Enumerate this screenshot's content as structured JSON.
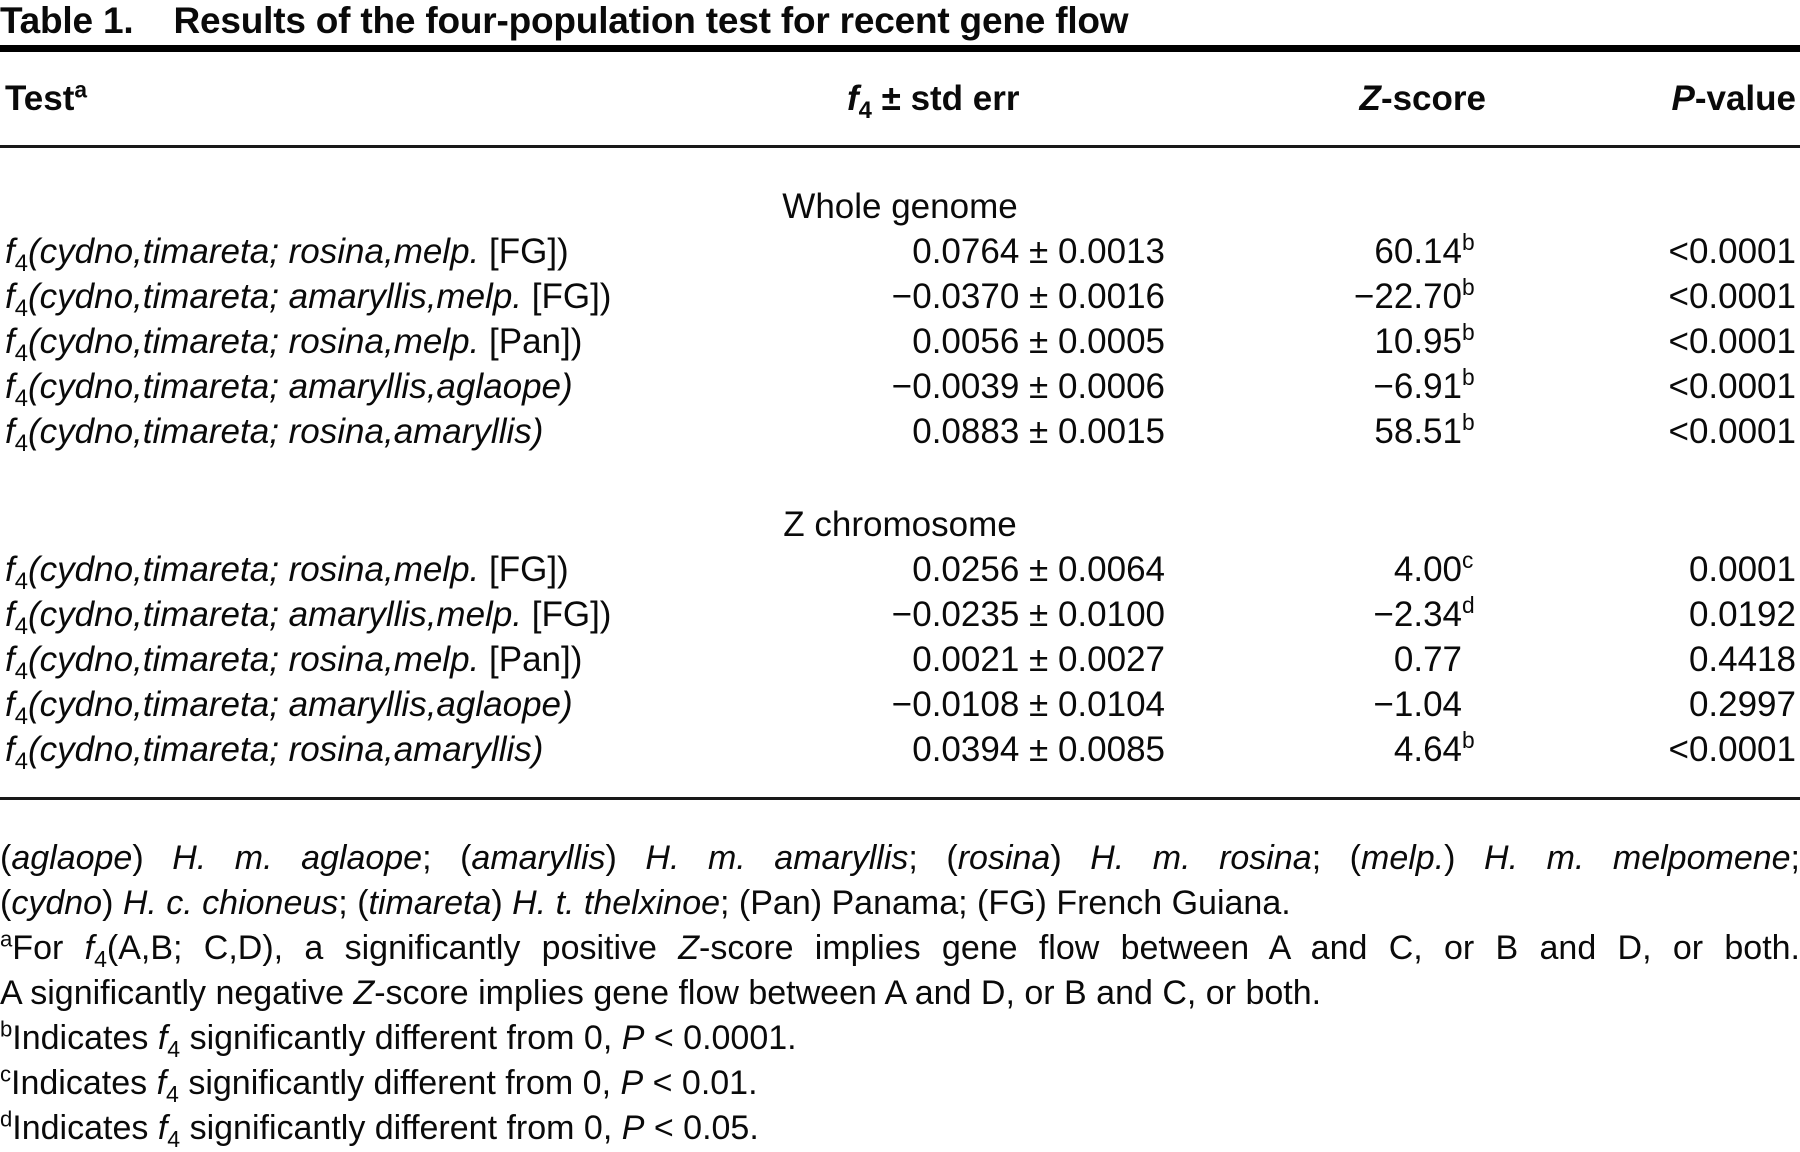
{
  "title": {
    "label": "Table 1.",
    "text": "Results of the four-population test for recent gene flow"
  },
  "columns": {
    "test": [
      {
        "t": "Test"
      },
      {
        "t": "a",
        "sup": 1
      }
    ],
    "f4": [
      {
        "t": "f",
        "i": 1
      },
      {
        "t": "4",
        "sub": 1
      },
      {
        "t": " ± std err"
      }
    ],
    "z": [
      {
        "t": "Z",
        "i": 1
      },
      {
        "t": "-score"
      }
    ],
    "p": [
      {
        "t": "P",
        "i": 1
      },
      {
        "t": "-value"
      }
    ]
  },
  "sections": [
    {
      "heading": "Whole genome",
      "rows": [
        {
          "test": [
            {
              "t": "f",
              "i": 1
            },
            {
              "t": "4",
              "sub": 1
            },
            {
              "t": "(cydno,timareta; rosina,melp.",
              "i": 1
            },
            {
              "t": " [FG])"
            }
          ],
          "f4": "0.0764 ± 0.0013",
          "z": "60.14",
          "z_sup": "b",
          "p": "<0.0001"
        },
        {
          "test": [
            {
              "t": "f",
              "i": 1
            },
            {
              "t": "4",
              "sub": 1
            },
            {
              "t": "(cydno,timareta; amaryllis,melp.",
              "i": 1
            },
            {
              "t": " [FG])"
            }
          ],
          "f4": "−0.0370 ± 0.0016",
          "z": "−22.70",
          "z_sup": "b",
          "p": "<0.0001"
        },
        {
          "test": [
            {
              "t": "f",
              "i": 1
            },
            {
              "t": "4",
              "sub": 1
            },
            {
              "t": "(cydno,timareta; rosina,melp.",
              "i": 1
            },
            {
              "t": " [Pan])"
            }
          ],
          "f4": "0.0056 ± 0.0005",
          "z": "10.95",
          "z_sup": "b",
          "p": "<0.0001"
        },
        {
          "test": [
            {
              "t": "f",
              "i": 1
            },
            {
              "t": "4",
              "sub": 1
            },
            {
              "t": "(cydno,timareta; amaryllis,aglaope)",
              "i": 1
            }
          ],
          "f4": "−0.0039 ± 0.0006",
          "z": "−6.91",
          "z_sup": "b",
          "p": "<0.0001"
        },
        {
          "test": [
            {
              "t": "f",
              "i": 1
            },
            {
              "t": "4",
              "sub": 1
            },
            {
              "t": "(cydno,timareta; rosina,amaryllis)",
              "i": 1
            }
          ],
          "f4": "0.0883 ± 0.0015",
          "z": "58.51",
          "z_sup": "b",
          "p": "<0.0001"
        }
      ]
    },
    {
      "heading": "Z chromosome",
      "rows": [
        {
          "test": [
            {
              "t": "f",
              "i": 1
            },
            {
              "t": "4",
              "sub": 1
            },
            {
              "t": "(cydno,timareta; rosina,melp.",
              "i": 1
            },
            {
              "t": " [FG])"
            }
          ],
          "f4": "0.0256 ± 0.0064",
          "z": "4.00",
          "z_sup": "c",
          "p": "0.0001"
        },
        {
          "test": [
            {
              "t": "f",
              "i": 1
            },
            {
              "t": "4",
              "sub": 1
            },
            {
              "t": "(cydno,timareta; amaryllis,melp.",
              "i": 1
            },
            {
              "t": " [FG])"
            }
          ],
          "f4": "−0.0235 ± 0.0100",
          "z": "−2.34",
          "z_sup": "d",
          "p": "0.0192"
        },
        {
          "test": [
            {
              "t": "f",
              "i": 1
            },
            {
              "t": "4",
              "sub": 1
            },
            {
              "t": "(cydno,timareta; rosina,melp.",
              "i": 1
            },
            {
              "t": " [Pan])"
            }
          ],
          "f4": "0.0021 ± 0.0027",
          "z": "0.77",
          "z_sup": "",
          "p": "0.4418"
        },
        {
          "test": [
            {
              "t": "f",
              "i": 1
            },
            {
              "t": "4",
              "sub": 1
            },
            {
              "t": "(cydno,timareta; amaryllis,aglaope)",
              "i": 1
            }
          ],
          "f4": "−0.0108 ± 0.0104",
          "z": "−1.04",
          "z_sup": "",
          "p": "0.2997"
        },
        {
          "test": [
            {
              "t": "f",
              "i": 1
            },
            {
              "t": "4",
              "sub": 1
            },
            {
              "t": "(cydno,timareta; rosina,amaryllis)",
              "i": 1
            }
          ],
          "f4": "0.0394 ± 0.0085",
          "z": "4.64",
          "z_sup": "b",
          "p": "<0.0001"
        }
      ]
    }
  ],
  "footnotes": {
    "species_key_line1": [
      {
        "t": "("
      },
      {
        "t": "aglaope",
        "i": 1
      },
      {
        "t": ") "
      },
      {
        "t": "H. m. aglaope",
        "i": 1
      },
      {
        "t": "; ("
      },
      {
        "t": "amaryllis",
        "i": 1
      },
      {
        "t": ") "
      },
      {
        "t": "H. m. amaryllis",
        "i": 1
      },
      {
        "t": "; ("
      },
      {
        "t": "rosina",
        "i": 1
      },
      {
        "t": ") "
      },
      {
        "t": "H. m. rosina",
        "i": 1
      },
      {
        "t": "; ("
      },
      {
        "t": "melp.",
        "i": 1
      },
      {
        "t": ") "
      },
      {
        "t": "H. m. melpomene",
        "i": 1
      },
      {
        "t": ";"
      }
    ],
    "species_key_line2": [
      {
        "t": "("
      },
      {
        "t": "cydno",
        "i": 1
      },
      {
        "t": ") "
      },
      {
        "t": "H. c. chioneus",
        "i": 1
      },
      {
        "t": "; ("
      },
      {
        "t": "timareta",
        "i": 1
      },
      {
        "t": ") "
      },
      {
        "t": "H. t. thelxinoe",
        "i": 1
      },
      {
        "t": "; (Pan) Panama; (FG) French Guiana."
      }
    ],
    "note_a_line1": [
      {
        "t": "a",
        "sup": 1
      },
      {
        "t": "For "
      },
      {
        "t": "f",
        "i": 1
      },
      {
        "t": "4",
        "sub": 1
      },
      {
        "t": "(A,B; C,D), a significantly positive "
      },
      {
        "t": "Z",
        "i": 1
      },
      {
        "t": "-score implies gene flow between A and C, or B and D, or both."
      }
    ],
    "note_a_line2": [
      {
        "t": "A significantly negative "
      },
      {
        "t": "Z",
        "i": 1
      },
      {
        "t": "-score implies gene flow between A and D, or B and C, or both."
      }
    ],
    "note_b": [
      {
        "t": "b",
        "sup": 1
      },
      {
        "t": "Indicates "
      },
      {
        "t": "f",
        "i": 1
      },
      {
        "t": "4",
        "sub": 1
      },
      {
        "t": " significantly different from 0, "
      },
      {
        "t": "P",
        "i": 1
      },
      {
        "t": " < 0.0001."
      }
    ],
    "note_c": [
      {
        "t": "c",
        "sup": 1
      },
      {
        "t": "Indicates "
      },
      {
        "t": "f",
        "i": 1
      },
      {
        "t": "4",
        "sub": 1
      },
      {
        "t": " significantly different from 0, "
      },
      {
        "t": "P",
        "i": 1
      },
      {
        "t": " < 0.01."
      }
    ],
    "note_d": [
      {
        "t": "d",
        "sup": 1
      },
      {
        "t": "Indicates "
      },
      {
        "t": "f",
        "i": 1
      },
      {
        "t": "4",
        "sub": 1
      },
      {
        "t": " significantly different from 0, "
      },
      {
        "t": "P",
        "i": 1
      },
      {
        "t": " < 0.05."
      }
    ]
  }
}
